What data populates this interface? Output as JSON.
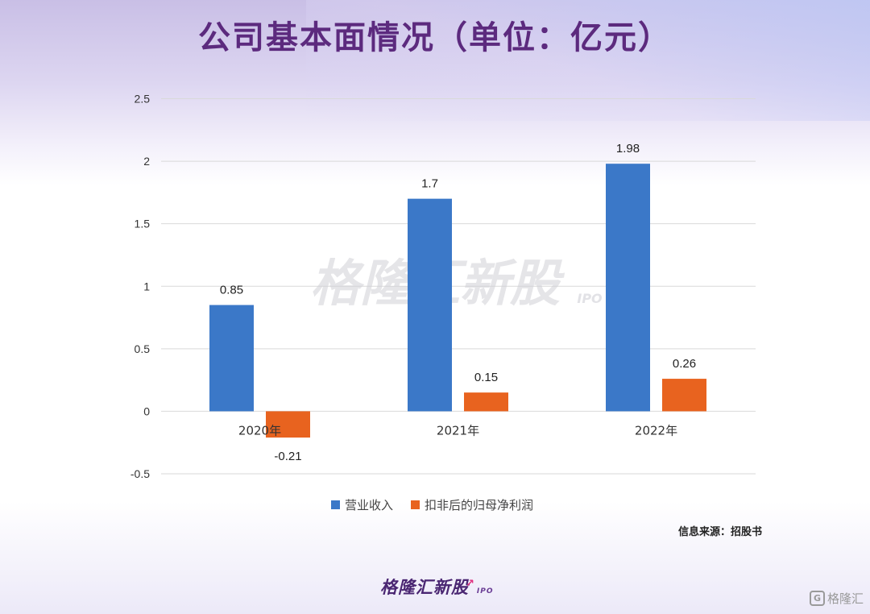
{
  "title": "公司基本面情况（单位：亿元）",
  "source": "信息来源：招股书",
  "watermark": {
    "text": "格隆汇新股",
    "sub": "IPO"
  },
  "footer_logo": {
    "text": "格隆汇新股",
    "sub": "IPO"
  },
  "corner_logo": {
    "text": "格隆汇"
  },
  "colors": {
    "title": "#5c2a7e",
    "series1": "#3b78c8",
    "series2": "#e8631f",
    "grid": "#d9d9d9"
  },
  "chart_data": {
    "type": "bar",
    "categories": [
      "2020年",
      "2021年",
      "2022年"
    ],
    "series": [
      {
        "name": "营业收入",
        "values": [
          0.85,
          1.7,
          1.98
        ],
        "labels": [
          "0.85",
          "1.7",
          "1.98"
        ]
      },
      {
        "name": "扣非后的归母净利润",
        "values": [
          -0.21,
          0.15,
          0.26
        ],
        "labels": [
          "-0.21",
          "0.15",
          "0.26"
        ]
      }
    ],
    "yticks": [
      "2.5",
      "2",
      "1.5",
      "1",
      "0.5",
      "0",
      "-0.5"
    ],
    "ytick_values": [
      2.5,
      2,
      1.5,
      1,
      0.5,
      0,
      -0.5
    ],
    "ylim": [
      -0.5,
      2.5
    ],
    "grid": true,
    "legend_position": "bottom"
  }
}
